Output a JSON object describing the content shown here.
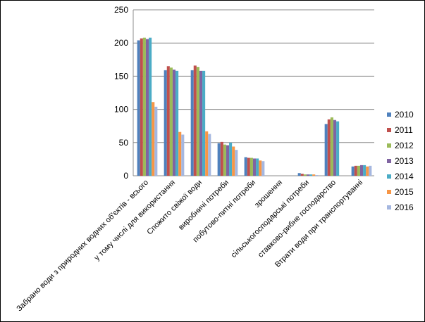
{
  "chart_data": {
    "type": "bar",
    "title": "",
    "xlabel": "",
    "ylabel": "",
    "ylim": [
      0,
      250
    ],
    "yticks": [
      "0",
      "50",
      "100",
      "150",
      "200",
      "250"
    ],
    "grid": true,
    "legend_position": "right",
    "categories": [
      "Забрано води з природних водних об'єктів - всього",
      "у тому числі для використання",
      "Спожито свіжої води",
      "виробничі потреби",
      "побутово-питні потреби",
      "зрошення",
      "сільськогосподарські потреби",
      "ставково-рибне господарство",
      "Втрати води при транспортуванні"
    ],
    "series": [
      {
        "name": "2010",
        "color": "#4F81BD",
        "values": [
          204,
          159,
          159,
          49,
          28,
          0,
          4,
          78,
          14
        ]
      },
      {
        "name": "2011",
        "color": "#C0504D",
        "values": [
          207,
          165,
          166,
          51,
          27,
          0,
          3,
          85,
          15
        ]
      },
      {
        "name": "2012",
        "color": "#9BBB59",
        "values": [
          208,
          163,
          164,
          47,
          27,
          0,
          2,
          88,
          15
        ]
      },
      {
        "name": "2013",
        "color": "#8064A2",
        "values": [
          206,
          160,
          158,
          46,
          26,
          0,
          2,
          84,
          16
        ]
      },
      {
        "name": "2014",
        "color": "#4BACC6",
        "values": [
          208,
          158,
          158,
          50,
          26,
          0,
          2,
          82,
          16
        ]
      },
      {
        "name": "2015",
        "color": "#F79646",
        "values": [
          111,
          66,
          67,
          44,
          23,
          0,
          2,
          0,
          14
        ]
      },
      {
        "name": "2016",
        "color": "#A5B7E0",
        "values": [
          104,
          62,
          63,
          39,
          22,
          0,
          1,
          0,
          15
        ]
      }
    ]
  }
}
